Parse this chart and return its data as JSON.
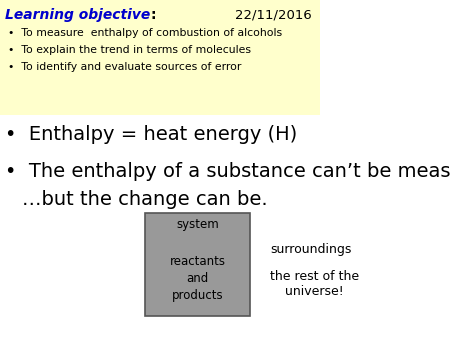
{
  "bg_color": "#ffffff",
  "header_bg": "#ffffcc",
  "header_title": "Learning objective",
  "header_colon": ":",
  "header_date": "22/11/2016",
  "header_bullets": [
    "To measure  enthalpy of combustion of alcohols",
    "To explain the trend in terms of molecules",
    "To identify and evaluate sources of error"
  ],
  "bullet1": "Enthalpy = heat energy (H)",
  "bullet2": "The enthalpy of a substance can’t be measured…",
  "bullet3": "…but the change can be.",
  "box_label_top": "system",
  "box_label_bottom": "reactants\nand\nproducts",
  "box_color": "#999999",
  "surroundings_line1": "surroundings",
  "surroundings_line2": "the rest of the\nuniverse!"
}
